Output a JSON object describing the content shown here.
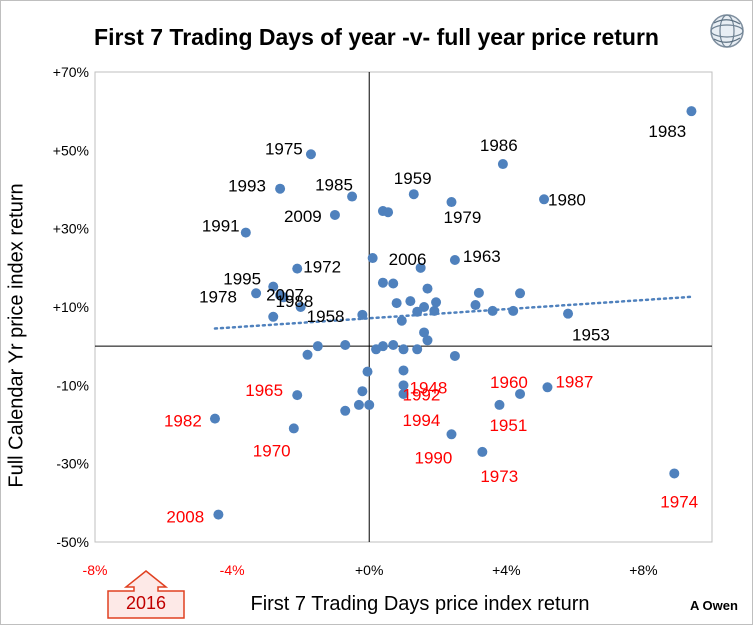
{
  "chart_data": {
    "type": "scatter",
    "title": "First 7 Trading Days of year -v- full year price return",
    "xlabel": "First 7 Trading Days price index return",
    "ylabel": "Full Calendar Yr price index return",
    "xlim": [
      -8,
      10
    ],
    "ylim": [
      -50,
      70
    ],
    "x_ticks": [
      {
        "value": -8,
        "label": "-8%",
        "color": "#ff0000"
      },
      {
        "value": -4,
        "label": "-4%",
        "color": "#ff0000"
      },
      {
        "value": 0,
        "label": "+0%",
        "color": "#000000"
      },
      {
        "value": 4,
        "label": "+4%",
        "color": "#000000"
      },
      {
        "value": 8,
        "label": "+8%",
        "color": "#000000"
      }
    ],
    "y_ticks": [
      {
        "value": 70,
        "label": "+70%"
      },
      {
        "value": 50,
        "label": "+50%"
      },
      {
        "value": 30,
        "label": "+30%"
      },
      {
        "value": 10,
        "label": "+10%"
      },
      {
        "value": -10,
        "label": "-10%"
      },
      {
        "value": -30,
        "label": "-30%"
      },
      {
        "value": -50,
        "label": "-50%"
      }
    ],
    "grid": false,
    "point_color": "#4f81bd",
    "trendline": {
      "style": "dotted",
      "color": "#4f81bd",
      "x1": -4.5,
      "y1": 4.5,
      "x2": 9.4,
      "y2": 12.6
    },
    "points": [
      {
        "x": 9.4,
        "y": 60.0
      },
      {
        "x": -1.7,
        "y": 49.0
      },
      {
        "x": 3.9,
        "y": 46.5
      },
      {
        "x": -2.6,
        "y": 40.2
      },
      {
        "x": 5.1,
        "y": 37.5
      },
      {
        "x": -0.5,
        "y": 38.2
      },
      {
        "x": 1.3,
        "y": 38.8
      },
      {
        "x": 2.4,
        "y": 36.8
      },
      {
        "x": 0.4,
        "y": 34.5
      },
      {
        "x": 0.55,
        "y": 34.2
      },
      {
        "x": -1.0,
        "y": 33.5
      },
      {
        "x": -3.6,
        "y": 29.0
      },
      {
        "x": 0.1,
        "y": 22.5
      },
      {
        "x": 2.5,
        "y": 22.0
      },
      {
        "x": 1.5,
        "y": 20.0
      },
      {
        "x": -2.1,
        "y": 19.8
      },
      {
        "x": 0.4,
        "y": 16.2
      },
      {
        "x": 0.7,
        "y": 16.0
      },
      {
        "x": -2.8,
        "y": 15.2
      },
      {
        "x": -3.3,
        "y": 13.5
      },
      {
        "x": -2.6,
        "y": 13.0
      },
      {
        "x": -2.5,
        "y": 12.5
      },
      {
        "x": 1.7,
        "y": 14.7
      },
      {
        "x": 3.2,
        "y": 13.6
      },
      {
        "x": 4.4,
        "y": 13.5
      },
      {
        "x": 1.2,
        "y": 11.5
      },
      {
        "x": 0.8,
        "y": 11.0
      },
      {
        "x": 1.95,
        "y": 11.2
      },
      {
        "x": 3.1,
        "y": 10.5
      },
      {
        "x": 1.6,
        "y": 10.0
      },
      {
        "x": -2.0,
        "y": 10.0
      },
      {
        "x": 1.4,
        "y": 8.8
      },
      {
        "x": 1.9,
        "y": 9.0
      },
      {
        "x": 3.6,
        "y": 9.0
      },
      {
        "x": 4.2,
        "y": 9.0
      },
      {
        "x": 5.8,
        "y": 8.3
      },
      {
        "x": -0.2,
        "y": 8.0
      },
      {
        "x": -2.8,
        "y": 7.5
      },
      {
        "x": 0.95,
        "y": 6.5
      },
      {
        "x": 1.6,
        "y": 3.5
      },
      {
        "x": 1.7,
        "y": 1.5
      },
      {
        "x": -1.5,
        "y": 0.0
      },
      {
        "x": -0.7,
        "y": 0.3
      },
      {
        "x": 0.4,
        "y": 0.0
      },
      {
        "x": 0.7,
        "y": 0.3
      },
      {
        "x": 0.2,
        "y": -0.8
      },
      {
        "x": 1.0,
        "y": -0.8
      },
      {
        "x": 1.4,
        "y": -0.8
      },
      {
        "x": 2.5,
        "y": -2.5
      },
      {
        "x": -1.8,
        "y": -2.2
      },
      {
        "x": -0.05,
        "y": -6.5
      },
      {
        "x": 1.0,
        "y": -6.2
      },
      {
        "x": -0.2,
        "y": -11.5
      },
      {
        "x": 1.0,
        "y": -10.0
      },
      {
        "x": 1.0,
        "y": -12.2
      },
      {
        "x": -2.1,
        "y": -12.5
      },
      {
        "x": 4.4,
        "y": -12.2
      },
      {
        "x": 5.2,
        "y": -10.5
      },
      {
        "x": -0.3,
        "y": -15.0
      },
      {
        "x": 0.0,
        "y": -15.0
      },
      {
        "x": -0.7,
        "y": -16.5
      },
      {
        "x": 3.8,
        "y": -15.0
      },
      {
        "x": -4.5,
        "y": -18.5
      },
      {
        "x": -2.2,
        "y": -21.0
      },
      {
        "x": 2.4,
        "y": -22.5
      },
      {
        "x": 3.3,
        "y": -27.0
      },
      {
        "x": 8.9,
        "y": -32.5
      },
      {
        "x": -4.4,
        "y": -43.0
      }
    ],
    "labels": [
      {
        "text": "1983",
        "x": 9.4,
        "y": 60.0,
        "color": "#000000"
      },
      {
        "text": "1975",
        "x": -1.7,
        "y": 49.0,
        "color": "#000000"
      },
      {
        "text": "1986",
        "x": 3.9,
        "y": 46.5,
        "color": "#000000"
      },
      {
        "text": "1993",
        "x": -2.6,
        "y": 40.2,
        "color": "#000000"
      },
      {
        "text": "1985",
        "x": -0.5,
        "y": 38.2,
        "color": "#000000"
      },
      {
        "text": "1959",
        "x": 1.3,
        "y": 38.8,
        "color": "#000000"
      },
      {
        "text": "1980",
        "x": 5.1,
        "y": 37.5,
        "color": "#000000"
      },
      {
        "text": "2009",
        "x": -1.0,
        "y": 33.5,
        "color": "#000000"
      },
      {
        "text": "1979",
        "x": 2.4,
        "y": 36.8,
        "color": "#000000"
      },
      {
        "text": "1991",
        "x": -3.6,
        "y": 29.0,
        "color": "#000000"
      },
      {
        "text": "2006",
        "x": 1.5,
        "y": 20.0,
        "color": "#000000"
      },
      {
        "text": "1963",
        "x": 2.5,
        "y": 22.0,
        "color": "#000000"
      },
      {
        "text": "1972",
        "x": -2.1,
        "y": 19.8,
        "color": "#000000"
      },
      {
        "text": "1995",
        "x": -2.8,
        "y": 15.2,
        "color": "#000000"
      },
      {
        "text": "2007",
        "x": -2.6,
        "y": 13.0,
        "color": "#000000"
      },
      {
        "text": "1978",
        "x": -3.3,
        "y": 13.5,
        "color": "#000000"
      },
      {
        "text": "1988",
        "x": -2.5,
        "y": 12.5,
        "color": "#000000"
      },
      {
        "text": "1958",
        "x": -2.0,
        "y": 10.0,
        "color": "#000000"
      },
      {
        "text": "1953",
        "x": 5.8,
        "y": 8.3,
        "color": "#000000"
      },
      {
        "text": "1992",
        "x": 1.0,
        "y": -6.2,
        "color": "#ff0000"
      },
      {
        "text": "1948",
        "x": 1.0,
        "y": -10.0,
        "color": "#ff0000"
      },
      {
        "text": "1994",
        "x": 1.0,
        "y": -12.2,
        "color": "#ff0000"
      },
      {
        "text": "1965",
        "x": -2.1,
        "y": -12.5,
        "color": "#ff0000"
      },
      {
        "text": "1960",
        "x": 4.4,
        "y": -12.2,
        "color": "#ff0000"
      },
      {
        "text": "1987",
        "x": 5.2,
        "y": -10.5,
        "color": "#ff0000"
      },
      {
        "text": "1982",
        "x": -4.5,
        "y": -18.5,
        "color": "#ff0000"
      },
      {
        "text": "1951",
        "x": 3.8,
        "y": -15.0,
        "color": "#ff0000"
      },
      {
        "text": "1970",
        "x": -2.2,
        "y": -21.0,
        "color": "#ff0000"
      },
      {
        "text": "1990",
        "x": 2.4,
        "y": -22.5,
        "color": "#ff0000"
      },
      {
        "text": "1973",
        "x": 3.3,
        "y": -27.0,
        "color": "#ff0000"
      },
      {
        "text": "1974",
        "x": 8.9,
        "y": -32.5,
        "color": "#ff0000"
      },
      {
        "text": "2008",
        "x": -4.4,
        "y": -43.0,
        "color": "#ff0000"
      }
    ],
    "marker": {
      "text": "2016",
      "x": -6.5,
      "color": "#c00000"
    }
  },
  "footer": {
    "author": "A  Owen"
  }
}
